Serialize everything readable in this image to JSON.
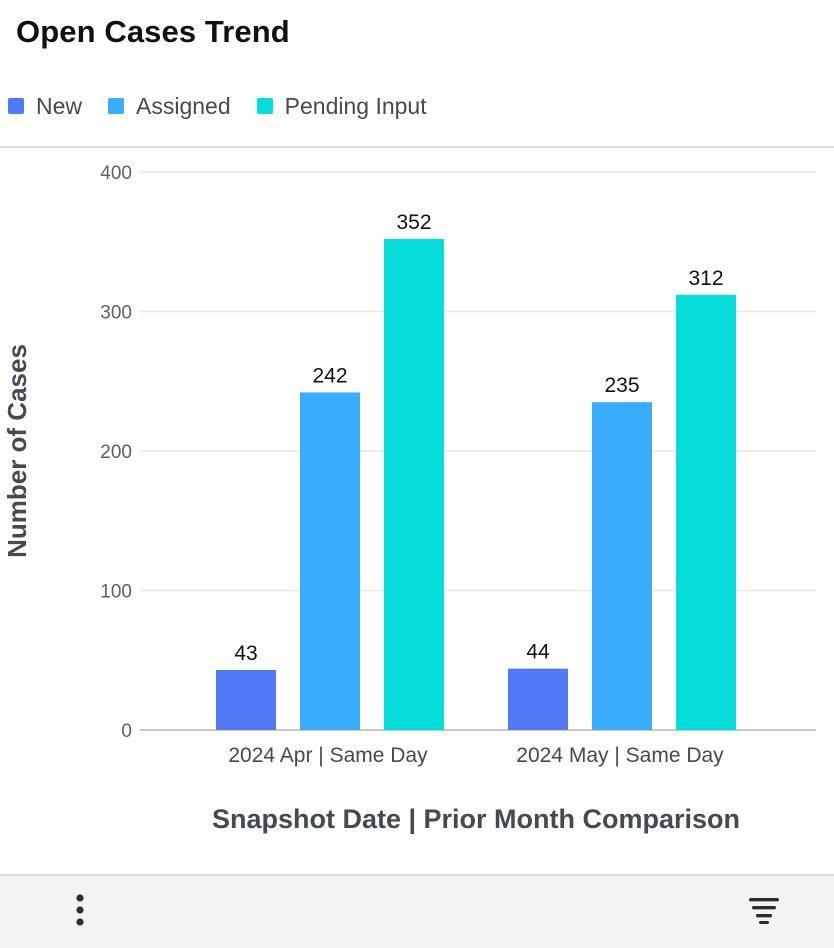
{
  "chart_data": {
    "type": "bar",
    "title": "Open Cases Trend",
    "xlabel": "Snapshot Date | Prior Month Comparison",
    "ylabel": "Number of Cases",
    "categories": [
      "2024 Apr | Same Day",
      "2024 May | Same Day"
    ],
    "series": [
      {
        "name": "New",
        "color": "#5479f7",
        "values": [
          43,
          44
        ]
      },
      {
        "name": "Assigned",
        "color": "#39acfd",
        "values": [
          242,
          235
        ]
      },
      {
        "name": "Pending Input",
        "color": "#06dddb",
        "values": [
          352,
          312
        ]
      }
    ],
    "ylim": [
      0,
      400
    ],
    "yticks": [
      0,
      100,
      200,
      300,
      400
    ],
    "grid": true,
    "legend": "top-left",
    "data_labels": true
  },
  "footer": {
    "more_icon": "vertical-ellipsis-icon",
    "filter_icon": "filter-lines-icon"
  }
}
